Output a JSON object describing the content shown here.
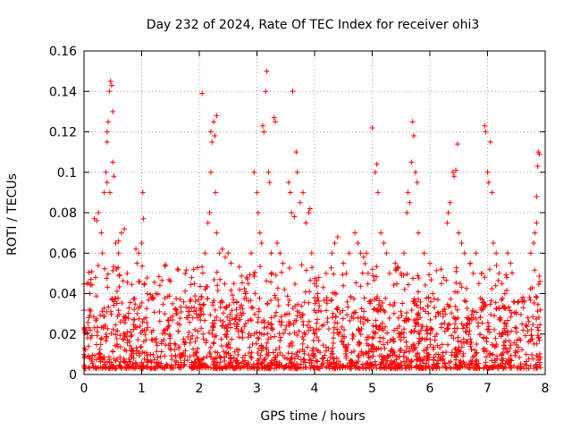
{
  "chart_data": {
    "type": "scatter",
    "title": "Day 232 of 2024, Rate Of TEC Index for receiver ohi3",
    "xlabel": "GPS time / hours",
    "ylabel": "ROTI / TECUs",
    "xlim": [
      0,
      8
    ],
    "ylim": [
      0,
      0.16
    ],
    "x_ticks": [
      "0",
      "1",
      "2",
      "3",
      "4",
      "5",
      "6",
      "7",
      "8"
    ],
    "y_ticks": [
      "0",
      "0.02",
      "0.04",
      "0.06",
      "0.08",
      "0.1",
      "0.12",
      "0.14",
      "0.16"
    ],
    "grid": true,
    "marker": "+",
    "marker_color": "#ff0000",
    "series": [
      {
        "name": "ROTI",
        "points": [
          [
            0.05,
            0.045
          ],
          [
            0.1,
            0.04
          ],
          [
            0.12,
            0.047
          ],
          [
            0.2,
            0.048
          ],
          [
            0.18,
            0.077
          ],
          [
            0.22,
            0.076
          ],
          [
            0.25,
            0.08
          ],
          [
            0.3,
            0.07
          ],
          [
            0.32,
            0.06
          ],
          [
            0.35,
            0.09
          ],
          [
            0.38,
            0.1
          ],
          [
            0.4,
            0.095
          ],
          [
            0.4,
            0.115
          ],
          [
            0.4,
            0.12
          ],
          [
            0.42,
            0.125
          ],
          [
            0.44,
            0.14
          ],
          [
            0.46,
            0.145
          ],
          [
            0.48,
            0.143
          ],
          [
            0.5,
            0.13
          ],
          [
            0.5,
            0.105
          ],
          [
            0.52,
            0.098
          ],
          [
            0.45,
            0.09
          ],
          [
            0.55,
            0.065
          ],
          [
            0.6,
            0.066
          ],
          [
            0.6,
            0.06
          ],
          [
            0.65,
            0.07
          ],
          [
            0.7,
            0.072
          ],
          [
            0.75,
            0.05
          ],
          [
            0.9,
            0.062
          ],
          [
            0.95,
            0.06
          ],
          [
            0.92,
            0.055
          ],
          [
            1.0,
            0.065
          ],
          [
            1.02,
            0.09
          ],
          [
            1.03,
            0.077
          ],
          [
            1.05,
            0.045
          ],
          [
            1.1,
            0.04
          ],
          [
            1.2,
            0.038
          ],
          [
            1.25,
            0.04
          ],
          [
            1.4,
            0.03
          ],
          [
            1.5,
            0.028
          ],
          [
            1.6,
            0.03
          ],
          [
            1.8,
            0.028
          ],
          [
            1.95,
            0.03
          ],
          [
            2.05,
            0.139
          ],
          [
            2.1,
            0.06
          ],
          [
            2.15,
            0.075
          ],
          [
            2.18,
            0.08
          ],
          [
            2.2,
            0.1
          ],
          [
            2.2,
            0.12
          ],
          [
            2.22,
            0.115
          ],
          [
            2.25,
            0.125
          ],
          [
            2.27,
            0.118
          ],
          [
            2.3,
            0.128
          ],
          [
            2.28,
            0.09
          ],
          [
            2.3,
            0.07
          ],
          [
            2.35,
            0.06
          ],
          [
            2.4,
            0.062
          ],
          [
            2.45,
            0.058
          ],
          [
            2.5,
            0.06
          ],
          [
            2.55,
            0.055
          ],
          [
            2.6,
            0.045
          ],
          [
            2.7,
            0.042
          ],
          [
            2.8,
            0.04
          ],
          [
            2.85,
            0.045
          ],
          [
            2.9,
            0.06
          ],
          [
            2.95,
            0.1
          ],
          [
            3.0,
            0.09
          ],
          [
            3.02,
            0.08
          ],
          [
            3.05,
            0.07
          ],
          [
            3.08,
            0.065
          ],
          [
            3.1,
            0.123
          ],
          [
            3.12,
            0.12
          ],
          [
            3.15,
            0.14
          ],
          [
            3.17,
            0.15
          ],
          [
            3.2,
            0.1
          ],
          [
            3.22,
            0.095
          ],
          [
            3.25,
            0.06
          ],
          [
            3.3,
            0.127
          ],
          [
            3.32,
            0.125
          ],
          [
            3.35,
            0.065
          ],
          [
            3.4,
            0.06
          ],
          [
            3.45,
            0.055
          ],
          [
            3.55,
            0.095
          ],
          [
            3.58,
            0.09
          ],
          [
            3.6,
            0.08
          ],
          [
            3.62,
            0.14
          ],
          [
            3.65,
            0.078
          ],
          [
            3.68,
            0.11
          ],
          [
            3.7,
            0.1
          ],
          [
            3.75,
            0.085
          ],
          [
            3.8,
            0.09
          ],
          [
            3.85,
            0.075
          ],
          [
            3.9,
            0.08
          ],
          [
            3.92,
            0.082
          ],
          [
            3.95,
            0.06
          ],
          [
            4.0,
            0.045
          ],
          [
            4.05,
            0.04
          ],
          [
            4.2,
            0.05
          ],
          [
            4.3,
            0.06
          ],
          [
            4.35,
            0.065
          ],
          [
            4.4,
            0.068
          ],
          [
            4.5,
            0.055
          ],
          [
            4.55,
            0.05
          ],
          [
            4.6,
            0.06
          ],
          [
            4.7,
            0.07
          ],
          [
            4.75,
            0.065
          ],
          [
            4.8,
            0.06
          ],
          [
            4.85,
            0.058
          ],
          [
            4.9,
            0.06
          ],
          [
            5.0,
            0.122
          ],
          [
            5.05,
            0.1
          ],
          [
            5.08,
            0.104
          ],
          [
            5.1,
            0.09
          ],
          [
            5.15,
            0.07
          ],
          [
            5.2,
            0.065
          ],
          [
            5.25,
            0.06
          ],
          [
            5.3,
            0.05
          ],
          [
            5.4,
            0.055
          ],
          [
            5.5,
            0.05
          ],
          [
            5.55,
            0.06
          ],
          [
            5.6,
            0.08
          ],
          [
            5.62,
            0.09
          ],
          [
            5.65,
            0.085
          ],
          [
            5.68,
            0.105
          ],
          [
            5.7,
            0.125
          ],
          [
            5.72,
            0.118
          ],
          [
            5.75,
            0.1
          ],
          [
            5.78,
            0.095
          ],
          [
            5.8,
            0.07
          ],
          [
            5.9,
            0.06
          ],
          [
            6.0,
            0.055
          ],
          [
            6.05,
            0.04
          ],
          [
            6.2,
            0.045
          ],
          [
            6.3,
            0.075
          ],
          [
            6.32,
            0.08
          ],
          [
            6.35,
            0.085
          ],
          [
            6.4,
            0.1
          ],
          [
            6.42,
            0.098
          ],
          [
            6.45,
            0.101
          ],
          [
            6.48,
            0.114
          ],
          [
            6.5,
            0.07
          ],
          [
            6.55,
            0.065
          ],
          [
            6.6,
            0.06
          ],
          [
            6.7,
            0.055
          ],
          [
            6.75,
            0.05
          ],
          [
            6.8,
            0.06
          ],
          [
            6.85,
            0.045
          ],
          [
            6.9,
            0.05
          ],
          [
            6.95,
            0.123
          ],
          [
            6.97,
            0.12
          ],
          [
            7.0,
            0.1
          ],
          [
            7.02,
            0.095
          ],
          [
            7.05,
            0.115
          ],
          [
            7.08,
            0.09
          ],
          [
            7.1,
            0.065
          ],
          [
            7.15,
            0.06
          ],
          [
            7.2,
            0.05
          ],
          [
            7.25,
            0.045
          ],
          [
            7.3,
            0.04
          ],
          [
            7.35,
            0.06
          ],
          [
            7.4,
            0.055
          ],
          [
            7.5,
            0.03
          ],
          [
            7.6,
            0.025
          ],
          [
            7.7,
            0.028
          ],
          [
            7.75,
            0.06
          ],
          [
            7.8,
            0.065
          ],
          [
            7.82,
            0.07
          ],
          [
            7.85,
            0.075
          ],
          [
            7.85,
            0.088
          ],
          [
            7.87,
            0.103
          ],
          [
            7.88,
            0.11
          ],
          [
            7.9,
            0.109
          ]
        ],
        "dense_band": [
          0.0,
          0.035
        ]
      }
    ]
  }
}
